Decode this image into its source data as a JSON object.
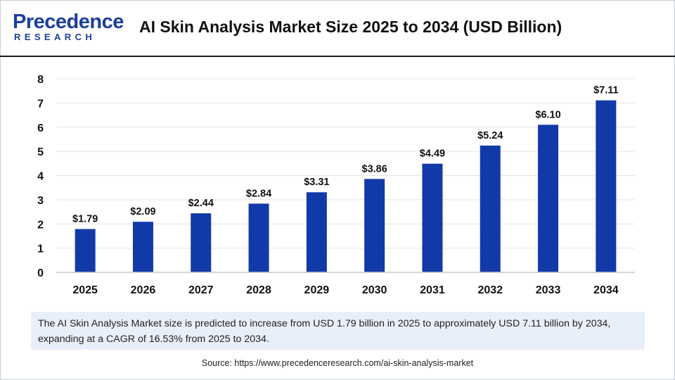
{
  "header": {
    "logo_main": "Precedence",
    "logo_sub": "RESEARCH",
    "title": "AI Skin Analysis Market Size 2025 to 2034 (USD Billion)"
  },
  "colors": {
    "bar": "#1239a8",
    "brand": "#1b3f9c",
    "grid": "#e4e4e4",
    "summary_bg": "#e9effa"
  },
  "chart_data": {
    "type": "bar",
    "title": "AI Skin Analysis Market Size 2025 to 2034 (USD Billion)",
    "xlabel": "",
    "ylabel": "",
    "categories": [
      "2025",
      "2026",
      "2027",
      "2028",
      "2029",
      "2030",
      "2031",
      "2032",
      "2033",
      "2034"
    ],
    "values": [
      1.79,
      2.09,
      2.44,
      2.84,
      3.31,
      3.86,
      4.49,
      5.24,
      6.1,
      7.11
    ],
    "value_labels": [
      "$1.79",
      "$2.09",
      "$2.44",
      "$2.84",
      "$3.31",
      "$3.86",
      "$4.49",
      "$5.24",
      "$6.10",
      "$7.11"
    ],
    "ylim": [
      0,
      8
    ],
    "yticks": [
      "0",
      "1",
      "2",
      "3",
      "4",
      "5",
      "6",
      "7",
      "8"
    ],
    "grid": true
  },
  "summary": "The AI Skin Analysis Market size is predicted to increase from USD 1.79 billion in 2025 to approximately USD 7.11 billion by 2034, expanding at a CAGR of 16.53% from 2025 to 2034.",
  "source": "Source: https://www.precedenceresearch.com/ai-skin-analysis-market"
}
